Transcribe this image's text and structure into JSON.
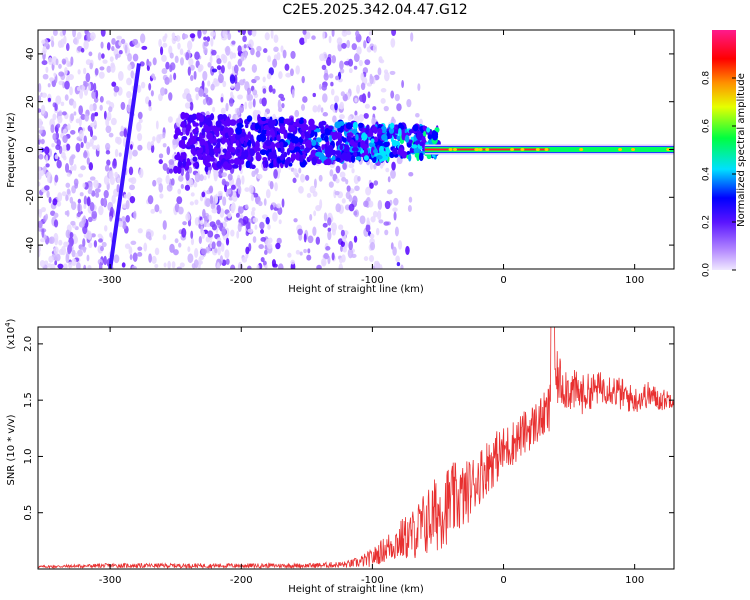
{
  "title": "C2E5.2025.342.04.47.G12",
  "chart_data": [
    {
      "type": "heatmap",
      "panel": "spectrogram",
      "xlabel": "Height of straight line (km)",
      "ylabel": "Frequency (Hz)",
      "xlim": [
        -355,
        130
      ],
      "ylim": [
        -50,
        50
      ],
      "xticks": [
        -300,
        -200,
        -100,
        0,
        100
      ],
      "xtick_labels": [
        "-300",
        "-200",
        "-100",
        "0",
        "100"
      ],
      "yticks": [
        -40,
        -20,
        0,
        20,
        40
      ],
      "ytick_labels": [
        "-40",
        "-20",
        "0",
        "20",
        "40"
      ],
      "colorbar": {
        "label": "Normalized spectral amplitude",
        "range": [
          0,
          1
        ],
        "ticks": [
          0.0,
          0.2,
          0.4,
          0.6,
          0.8
        ],
        "tick_labels": [
          "0.0",
          "0.2",
          "0.4",
          "0.6",
          "0.8"
        ],
        "colors": [
          "#f0e8ff",
          "#8a2be2",
          "#0000ff",
          "#00e5ff",
          "#00ff40",
          "#ffff00",
          "#ff8000",
          "#ff0000",
          "#ff1a8c"
        ]
      },
      "features": {
        "noise_region_x": [
          -355,
          -130
        ],
        "noise_fade_x": [
          -130,
          -60
        ],
        "signal_line_freq": 0,
        "signal_line_x": [
          -60,
          130
        ],
        "diagonal_streak": {
          "x": [
            -300,
            -278
          ],
          "y": [
            -50,
            36
          ]
        }
      },
      "grid": false
    },
    {
      "type": "line",
      "panel": "snr",
      "xlabel": "Height of straight line (km)",
      "ylabel": "SNR (10 * v/v)",
      "ylabel_multiplier": "(x10",
      "ylabel_multiplier_exp": "4",
      "ylabel_multiplier_close": ")",
      "xlim": [
        -355,
        130
      ],
      "ylim": [
        0,
        2.15
      ],
      "xticks": [
        -300,
        -200,
        -100,
        0,
        100
      ],
      "xtick_labels": [
        "-300",
        "-200",
        "-100",
        "0",
        "100"
      ],
      "yticks": [
        0.5,
        1.0,
        1.5,
        2.0
      ],
      "ytick_labels": [
        "0.5",
        "1.0",
        "1.5",
        "2.0"
      ],
      "color": "#e83030",
      "grid": false,
      "series": [
        {
          "x": [
            -355,
            -300,
            -250,
            -200,
            -150,
            -120,
            -110,
            -100,
            -90,
            -80,
            -70,
            -60,
            -50,
            -40,
            -30,
            -20,
            -10,
            0,
            10,
            20,
            30,
            35,
            40,
            50,
            60,
            70,
            80,
            90,
            100,
            110,
            120,
            130
          ],
          "y": [
            0.02,
            0.03,
            0.03,
            0.03,
            0.03,
            0.04,
            0.06,
            0.1,
            0.18,
            0.25,
            0.3,
            0.4,
            0.5,
            0.6,
            0.65,
            0.8,
            0.95,
            1.05,
            1.15,
            1.25,
            1.35,
            1.4,
            1.7,
            1.6,
            1.55,
            1.6,
            1.62,
            1.55,
            1.5,
            1.55,
            1.5,
            1.52
          ],
          "noise_amplitude": [
            0.01,
            0.02,
            0.02,
            0.02,
            0.02,
            0.03,
            0.05,
            0.08,
            0.12,
            0.18,
            0.22,
            0.3,
            0.35,
            0.35,
            0.3,
            0.25,
            0.25,
            0.22,
            0.2,
            0.2,
            0.2,
            0.25,
            0.25,
            0.2,
            0.18,
            0.15,
            0.15,
            0.15,
            0.12,
            0.12,
            0.1,
            0.08
          ]
        }
      ]
    }
  ]
}
